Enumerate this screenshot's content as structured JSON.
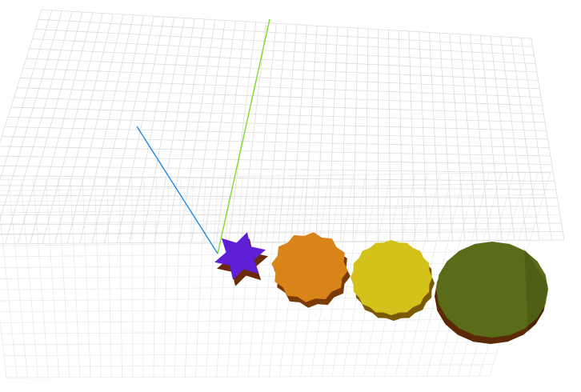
{
  "scene": {
    "background": "#ffffff",
    "grid": {
      "visible": true,
      "color": "#d8d8d8"
    },
    "axes": [
      {
        "name": "y-axis",
        "color": "#7ddc2a"
      },
      {
        "name": "z-axis",
        "color": "#1e88e5"
      }
    ],
    "objects": [
      {
        "name": "purple-star-shape",
        "shape": "6-point star",
        "color": "#5f1fd6",
        "side_color": "#6a2a0a"
      },
      {
        "name": "orange-gear-shape",
        "shape": "12-point gear",
        "color": "#d98419",
        "side_color": "#7a3a06"
      },
      {
        "name": "yellow-gear-shape",
        "shape": "16-point gear",
        "color": "#d4c21a",
        "side_color": "#7a5a06"
      },
      {
        "name": "olive-polygon-shape",
        "shape": "20-sided polygon",
        "color": "#5b6c19",
        "side_color": "#5a2a06"
      }
    ]
  }
}
